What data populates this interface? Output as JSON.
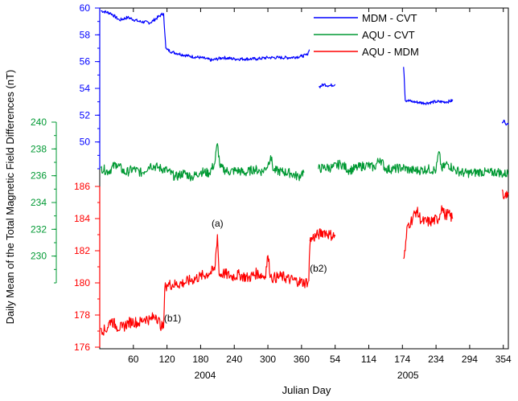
{
  "chart_data": {
    "type": "line",
    "title": "",
    "xlabel": "Julian Day",
    "ylabel": "Daily Mean of the Total Magnetic Field Differences (nT)",
    "year_labels": [
      {
        "label": "2004",
        "day": 188
      },
      {
        "label": "2005",
        "day": 550
      }
    ],
    "x_range": [
      0,
      729
    ],
    "x_ticks": [
      {
        "label": "60",
        "day": 60
      },
      {
        "label": "120",
        "day": 120
      },
      {
        "label": "180",
        "day": 180
      },
      {
        "label": "240",
        "day": 240
      },
      {
        "label": "300",
        "day": 300
      },
      {
        "label": "360",
        "day": 360
      },
      {
        "label": "54",
        "day": 420
      },
      {
        "label": "114",
        "day": 480
      },
      {
        "label": "174",
        "day": 540
      },
      {
        "label": "234",
        "day": 600
      },
      {
        "label": "294",
        "day": 660
      },
      {
        "label": "354",
        "day": 720
      }
    ],
    "axes": [
      {
        "id": "blue",
        "color": "#0000ff",
        "range": [
          48,
          60
        ],
        "ticks": [
          "50",
          "52",
          "54",
          "56",
          "58",
          "60"
        ]
      },
      {
        "id": "green",
        "color": "#009933",
        "range": [
          228,
          240
        ],
        "ticks": [
          "230",
          "232",
          "234",
          "236",
          "238",
          "240"
        ]
      },
      {
        "id": "red",
        "color": "#ff0000",
        "range": [
          176,
          186
        ],
        "ticks": [
          "176",
          "178",
          "180",
          "182",
          "184",
          "186"
        ]
      }
    ],
    "series": [
      {
        "name": "MDM - CVT",
        "color": "#0000ff",
        "axis": "blue",
        "segments": [
          {
            "x": [
              2,
              20,
              35,
              50,
              70,
              90,
              110,
              114,
              116,
              118,
              120,
              130,
              140,
              160,
              180,
              200,
              220,
              240,
              260,
              280,
              300,
              320,
              340,
              360,
              370,
              372,
              374
            ],
            "y": [
              59.8,
              59.6,
              59.1,
              59.3,
              59.0,
              58.9,
              59.5,
              59.6,
              58.2,
              57.0,
              56.9,
              56.7,
              56.6,
              56.4,
              56.3,
              56.1,
              56.3,
              56.2,
              56.2,
              56.2,
              56.3,
              56.3,
              56.3,
              56.4,
              56.5,
              56.7,
              56.9
            ]
          },
          {
            "x": [
              391,
              400,
              410,
              420
            ],
            "y": [
              54.1,
              54.3,
              54.2,
              54.3
            ]
          },
          {
            "x": [
              542,
              543,
              545,
              548,
              560,
              580,
              600,
              620,
              630
            ],
            "y": [
              55.6,
              55.0,
              53.1,
              53.1,
              53.0,
              52.9,
              53.0,
              53.0,
              53.1
            ]
          },
          {
            "x": [
              718,
              722,
              726,
              729
            ],
            "y": [
              51.4,
              51.6,
              51.3,
              51.3
            ]
          }
        ]
      },
      {
        "name": "AQU - CVT",
        "color": "#009933",
        "axis": "green",
        "segments": [
          {
            "x": [
              2,
              15,
              30,
              45,
              60,
              75,
              90,
              105,
              120,
              135,
              150,
              165,
              180,
              195,
              205,
              210,
              215,
              230,
              245,
              260,
              275,
              290,
              300,
              305,
              310,
              325,
              340,
              355,
              360,
              365
            ],
            "y": [
              236.6,
              236.3,
              236.9,
              236.2,
              236.5,
              236.2,
              236.8,
              236.6,
              236.4,
              235.9,
              236.2,
              235.9,
              236.3,
              236.2,
              236.9,
              238.4,
              236.6,
              236.3,
              236.4,
              236.2,
              236.5,
              236.3,
              236.8,
              237.5,
              236.4,
              236.3,
              236.2,
              235.9,
              236.2,
              236.3
            ]
          },
          {
            "x": [
              390,
              400,
              415,
              430,
              445,
              460,
              475,
              490,
              500,
              510,
              525,
              540,
              555,
              570,
              585,
              600,
              605,
              610,
              620,
              635,
              650,
              665,
              680,
              695,
              710,
              720,
              729
            ],
            "y": [
              236.5,
              236.6,
              236.6,
              236.9,
              236.4,
              236.6,
              236.8,
              236.6,
              237.3,
              236.5,
              236.5,
              236.6,
              236.4,
              236.4,
              236.5,
              236.4,
              237.8,
              236.5,
              236.9,
              236.4,
              236.2,
              236.2,
              236.3,
              236.2,
              236.3,
              236.1,
              236.2
            ]
          }
        ]
      },
      {
        "name": "AQU - MDM",
        "color": "#ff0000",
        "axis": "red",
        "segments": [
          {
            "x": [
              2,
              10,
              20,
              30,
              40,
              50,
              60,
              70,
              80,
              90,
              100,
              110,
              114,
              116,
              118,
              120,
              135,
              150,
              165,
              180,
              195,
              205,
              210,
              213,
              220,
              235,
              250,
              265,
              280,
              295,
              300,
              305,
              310,
              325,
              340,
              355,
              365,
              372
            ],
            "y": [
              177.2,
              177.0,
              177.7,
              177.3,
              177.2,
              177.5,
              177.6,
              177.5,
              177.8,
              177.7,
              178.0,
              177.3,
              177.2,
              179.6,
              179.8,
              179.9,
              179.9,
              180.0,
              180.2,
              180.4,
              180.6,
              180.8,
              183.0,
              180.5,
              180.6,
              180.4,
              180.5,
              180.3,
              180.6,
              180.4,
              181.7,
              180.4,
              180.3,
              180.4,
              180.2,
              180.1,
              180.0,
              180.1
            ]
          },
          {
            "x": [
              373,
              374,
              375,
              376
            ],
            "y": [
              180.1,
              181.6,
              182.3,
              182.8
            ]
          },
          {
            "x": [
              375,
              380,
              390,
              400,
              410,
              420
            ],
            "y": [
              182.6,
              182.8,
              183.0,
              183.2,
              183.0,
              182.9
            ]
          },
          {
            "x": [
              542,
              545,
              549,
              555,
              565,
              575,
              590,
              605,
              610,
              615,
              620,
              630
            ],
            "y": [
              181.5,
              182.0,
              183.6,
              183.8,
              184.5,
              183.8,
              183.8,
              184.0,
              184.8,
              184.2,
              184.3,
              184.0
            ]
          },
          {
            "x": [
              718,
              720,
              724,
              729
            ],
            "y": [
              185.8,
              185.3,
              185.6,
              185.5
            ]
          }
        ]
      }
    ],
    "legend": {
      "placement": "top-right"
    },
    "annotations": [
      {
        "text": "(a)",
        "x": 210,
        "y": 183.5,
        "axis": "red"
      },
      {
        "text": "(b1)",
        "x": 130,
        "y": 177.6,
        "axis": "red"
      },
      {
        "text": "(b2)",
        "x": 390,
        "y": 180.7,
        "axis": "red"
      }
    ],
    "grid": false
  }
}
